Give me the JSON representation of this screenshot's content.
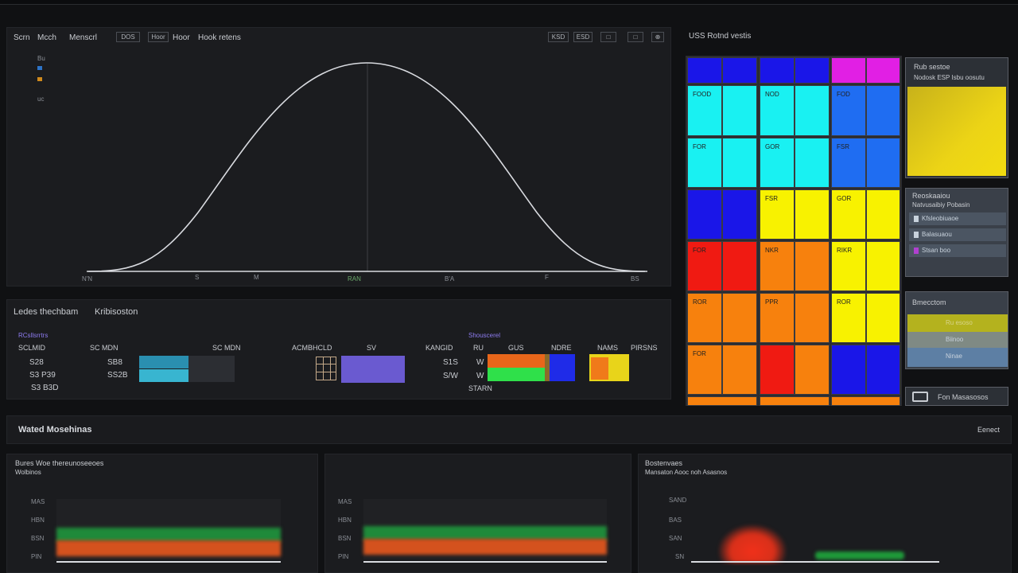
{
  "top_panel": {
    "toolbar": [
      "Scrn",
      "Mcch",
      "Menscrl",
      "DOS",
      "Hoor",
      "Hoor",
      "Hook retens"
    ],
    "right_buttons": [
      "KSD",
      "ESD",
      "□",
      "□",
      "⊕"
    ],
    "legend_ticks": [
      "Bu",
      "",
      "",
      "uc"
    ],
    "x_ticks": [
      "N'N",
      "S",
      "M",
      "RAN",
      "B'A",
      "F",
      "BS"
    ]
  },
  "mid_panel": {
    "title_a": "Ledes thechbam",
    "title_b": "Kribisoston",
    "group1": {
      "head": "RCsllsrrtrs",
      "col_a": "SCLMID",
      "col_b": "SC MDN",
      "rows": [
        [
          "S28",
          "SB8"
        ],
        [
          "S3 P39",
          "SS2B"
        ],
        [
          "S3 B3D",
          ""
        ]
      ]
    },
    "group2": {
      "head": "ACMBHCLD",
      "sub": "SV"
    },
    "group3": {
      "head": "Shouscerel",
      "cols": [
        "KANGID",
        "RU",
        "GUS",
        "NDRE",
        "NAMS",
        "PIRSNS"
      ],
      "rows": [
        [
          "S1S",
          "W"
        ],
        [
          "S/W",
          "W"
        ]
      ],
      "foot": "STARN"
    }
  },
  "heatmap": {
    "title": "USS Rotnd vestis",
    "labels": [
      "FOOD",
      "NOD",
      "FOD",
      "FOR",
      "GOR",
      "FSR",
      "FSR",
      "GOR",
      "FOR",
      "NKR",
      "RIKR",
      "ROR",
      "PPR",
      "ROR",
      "FOR"
    ],
    "colors": {
      "blue": "#1a16e8",
      "magenta": "#e11fe4",
      "cyan": "#19f1f2",
      "azure": "#1f6df2",
      "yellow": "#f8f200",
      "red": "#f01a12",
      "orange": "#f7810d"
    }
  },
  "side": {
    "card1_title": "Rub sestoe",
    "card1_sub": "Nodosk ESP Isbu oosutu",
    "card2_title": "Reoskaaiou",
    "card2_sub": "Natvusaibiy Pobasin",
    "items": [
      "Kfsleobiuaoe",
      "Balasuaou",
      "Stsan boo"
    ],
    "card3_title": "Bmecctom",
    "card3_items": [
      "Ru esoso",
      "Biinoo",
      "Ninae"
    ],
    "footer_button": "Fon Masasosos",
    "footer_icon": "monitor-icon"
  },
  "bottom": {
    "title": "Wated Mosehinas",
    "action": "Eenect",
    "charts": [
      {
        "title": "Bures Woe thereunoseeoes",
        "subtitle": "Wolbinos",
        "ticks": [
          "MAS",
          "HBN",
          "BSN",
          "PIN"
        ]
      },
      {
        "title": "",
        "subtitle": "",
        "ticks": [
          "MAS",
          "HBN",
          "BSN",
          "PIN"
        ]
      },
      {
        "title": "Bostenvaes",
        "subtitle": "Mansaton Aooc noh Asasnos",
        "ticks": [
          "SAND",
          "BAS",
          "SAN",
          "SN"
        ]
      }
    ]
  }
}
